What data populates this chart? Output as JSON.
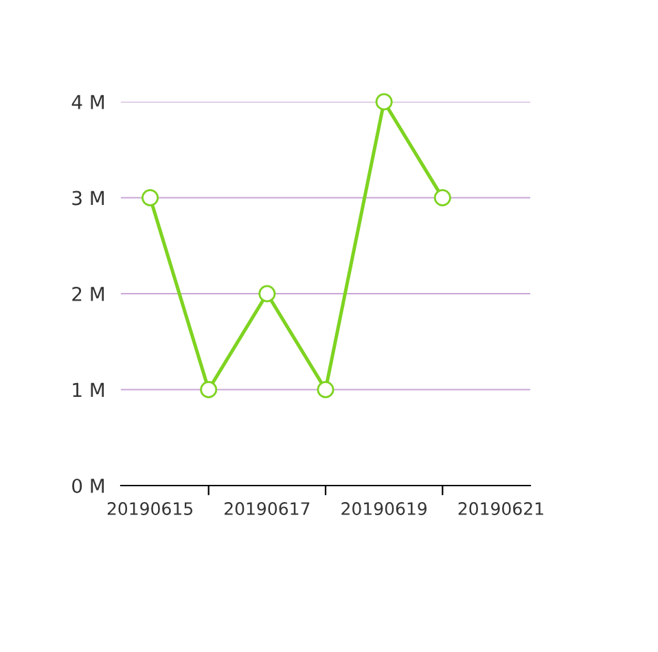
{
  "chart_data": {
    "type": "line",
    "categories": [
      "20190615",
      null,
      "20190617",
      null,
      "20190619",
      null,
      "20190621"
    ],
    "series": [
      {
        "color": "#7ed321",
        "values": [
          3,
          1,
          2,
          1,
          4,
          3,
          null
        ]
      }
    ],
    "ylim": [
      0,
      4
    ],
    "yticks": [
      {
        "value": 0,
        "label": "0 M"
      },
      {
        "value": 1,
        "label": "1 M"
      },
      {
        "value": 2,
        "label": "2 M"
      },
      {
        "value": 3,
        "label": "3 M"
      },
      {
        "value": 4,
        "label": "4 M"
      }
    ],
    "grid": "y",
    "marker": "circle",
    "line_style": "solid"
  }
}
